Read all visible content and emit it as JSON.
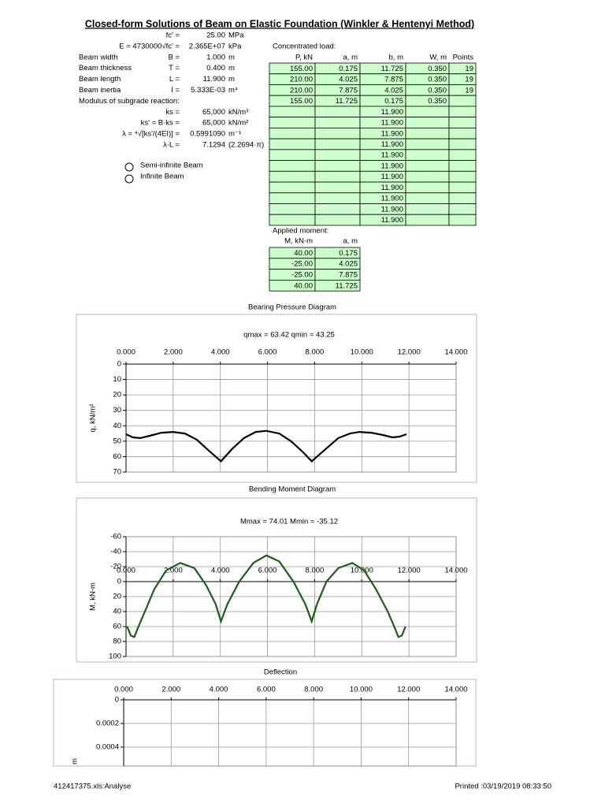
{
  "header": {
    "title": "Closed-form Solutions of Beam on Elastic Foundation (Winkler & Hentenyi Method)"
  },
  "parameters": [
    {
      "symbol": "fc' =",
      "value": "25.00",
      "unit": "MPa"
    },
    {
      "symbol": "E = 4730000√fc' =",
      "value": "2.365E+07",
      "unit": "kPa"
    },
    {
      "label": "Beam width",
      "symbol": "B =",
      "value": "1.000",
      "unit": "m"
    },
    {
      "label": "Beam thickness",
      "symbol": "T =",
      "value": "0.400",
      "unit": "m"
    },
    {
      "label": "Beam length",
      "symbol": "L =",
      "value": "11.900",
      "unit": "m"
    },
    {
      "label": "Beam inertia",
      "symbol": "I =",
      "value": "5.333E-03",
      "unit": "m⁴"
    },
    {
      "label": "Modulus of subgrade reaction:"
    },
    {
      "symbol": "ks =",
      "value": "65,000",
      "unit": "kN/m³"
    },
    {
      "symbol": "ks' = B·ks =",
      "value": "65,000",
      "unit": "kN/m²"
    },
    {
      "symbol": "λ = ⁴√[ks'/(4EI)] =",
      "value": "0.5991090",
      "unit": "m⁻¹"
    },
    {
      "symbol": "λ·L =",
      "value": "7.1294",
      "unit": "(2.2694·π)"
    }
  ],
  "options": [
    "Semi-infinite Beam",
    "Infinite Beam"
  ],
  "concentrated_load": {
    "title": "Concentrated load:",
    "headers": [
      "P, kN",
      "a, m",
      "b, m",
      "W, m",
      "Points"
    ],
    "rows": [
      [
        "155.00",
        "0.175",
        "11.725",
        "0.350",
        "19"
      ],
      [
        "210.00",
        "4.025",
        "7.875",
        "0.350",
        "19"
      ],
      [
        "210.00",
        "7.875",
        "4.025",
        "0.350",
        "19"
      ],
      [
        "155.00",
        "11.725",
        "0.175",
        "0.350",
        null
      ],
      [
        null,
        null,
        "11.900",
        null,
        null
      ],
      [
        null,
        null,
        "11.900",
        null,
        null
      ],
      [
        null,
        null,
        "11.900",
        null,
        null
      ],
      [
        null,
        null,
        "11.900",
        null,
        null
      ],
      [
        null,
        null,
        "11.900",
        null,
        null
      ],
      [
        null,
        null,
        "11.900",
        null,
        null
      ],
      [
        null,
        null,
        "11.900",
        null,
        null
      ],
      [
        null,
        null,
        "11.900",
        null,
        null
      ],
      [
        null,
        null,
        "11.900",
        null,
        null
      ],
      [
        null,
        null,
        "11.900",
        null,
        null
      ],
      [
        null,
        null,
        "11.900",
        null,
        null
      ]
    ]
  },
  "applied_moment": {
    "title": "Applied moment:",
    "headers": [
      "M, kN-m",
      "a, m"
    ],
    "rows": [
      [
        "40.00",
        "0.175"
      ],
      [
        "-25.00",
        "4.025"
      ],
      [
        "-25.00",
        "7.875"
      ],
      [
        "40.00",
        "11.725"
      ]
    ]
  },
  "chart_data": [
    {
      "type": "line",
      "title": "Bearing Pressure Diagram",
      "annotation": "qmax = 63.42    qmin = 43.25",
      "ylabel": "q, kN/m²",
      "xlim": [
        0,
        14
      ],
      "xticks": [
        {
          "value": 0,
          "label": "0.000"
        },
        {
          "value": 2,
          "label": "2.000"
        },
        {
          "value": 4,
          "label": "4.000"
        },
        {
          "value": 6,
          "label": "6.000"
        },
        {
          "value": 8,
          "label": "8.000"
        },
        {
          "value": 10,
          "label": "10.000"
        },
        {
          "value": 12,
          "label": "12.000"
        },
        {
          "value": 14,
          "label": "14.000"
        }
      ],
      "ylim": [
        0,
        70
      ],
      "yticks": [
        0,
        10,
        20,
        30,
        40,
        50,
        60,
        70
      ],
      "grid": true,
      "color": "#000000",
      "x": [
        0,
        0.3,
        0.6,
        1.0,
        1.5,
        2.0,
        2.5,
        3.0,
        3.5,
        4.025,
        4.5,
        5.0,
        5.5,
        5.95,
        6.5,
        7.0,
        7.5,
        7.875,
        8.4,
        9.0,
        9.5,
        9.9,
        10.4,
        10.9,
        11.3,
        11.6,
        11.9
      ],
      "values": [
        45.5,
        47.5,
        48,
        46.5,
        44.5,
        44,
        45,
        49,
        56,
        63,
        55,
        48,
        44,
        43.3,
        45,
        50,
        57,
        63,
        56,
        48,
        45,
        44,
        44.5,
        46,
        47.5,
        47,
        45.5
      ]
    },
    {
      "type": "line",
      "title": "Bending Moment Diagram",
      "annotation": "Mmax = 74.01    Mmin = -35.12",
      "ylabel": "M, kN-m",
      "xlim": [
        0,
        14
      ],
      "xticks": [
        {
          "value": 0,
          "label": "0.000"
        },
        {
          "value": 2,
          "label": "2.000"
        },
        {
          "value": 4,
          "label": "4.000"
        },
        {
          "value": 6,
          "label": "6.000"
        },
        {
          "value": 8,
          "label": "8.000"
        },
        {
          "value": 10,
          "label": "10.000"
        },
        {
          "value": 12,
          "label": "12.000"
        },
        {
          "value": 14,
          "label": "14.000"
        }
      ],
      "ylim": [
        -60,
        100
      ],
      "yticks": [
        -60,
        -40,
        -20,
        0,
        20,
        40,
        60,
        80,
        100
      ],
      "grid": true,
      "color": "#1f5a1f",
      "x": [
        0.05,
        0.2,
        0.35,
        0.5,
        0.8,
        1.2,
        1.7,
        2.3,
        2.9,
        3.4,
        3.8,
        4.025,
        4.3,
        4.8,
        5.4,
        5.95,
        6.5,
        7.1,
        7.6,
        7.875,
        8.1,
        8.5,
        9.0,
        9.6,
        10.1,
        10.6,
        11.1,
        11.4,
        11.55,
        11.7,
        11.85
      ],
      "values": [
        60,
        72,
        74,
        62,
        40,
        10,
        -15,
        -25,
        -18,
        5,
        30,
        53,
        30,
        0,
        -25,
        -35,
        -27,
        0,
        30,
        53,
        30,
        0,
        -18,
        -25,
        -15,
        10,
        40,
        62,
        74,
        72,
        60
      ]
    },
    {
      "type": "line",
      "title": "Deflection",
      "ylabel": "m",
      "xlim": [
        0,
        14
      ],
      "xticks": [
        {
          "value": 0,
          "label": "0.000"
        },
        {
          "value": 2,
          "label": "2.000"
        },
        {
          "value": 4,
          "label": "4.000"
        },
        {
          "value": 6,
          "label": "6.000"
        },
        {
          "value": 8,
          "label": "8.000"
        },
        {
          "value": 10,
          "label": "10.000"
        },
        {
          "value": 12,
          "label": "12.000"
        },
        {
          "value": 14,
          "label": "14.000"
        }
      ],
      "ylim": [
        0,
        0.0006
      ],
      "yticks": [
        0,
        0.0002,
        0.0004
      ],
      "grid": true
    }
  ],
  "footer": {
    "left": "412417375.xls:Analyse",
    "right": "Printed :03/19/2019 08:33:50"
  }
}
